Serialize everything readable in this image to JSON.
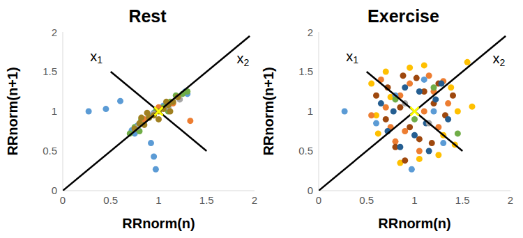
{
  "chart_data": [
    {
      "type": "scatter",
      "title": "Rest",
      "x_label": "RRnorm(n)",
      "y_label": "RRnorm(n+1)",
      "xlim": [
        0,
        2
      ],
      "ylim": [
        0,
        2
      ],
      "xticks": [
        0,
        0.5,
        1,
        1.5,
        2
      ],
      "yticks": [
        0,
        0.5,
        1,
        1.5,
        2
      ],
      "grid": false,
      "marker": "circle",
      "series": [
        {
          "color": "#5b9bd5",
          "x": [
            0.27,
            0.45,
            0.6,
            0.72,
            0.78,
            0.85,
            0.9,
            0.95,
            1.0,
            1.05,
            1.12,
            1.2,
            1.28,
            0.92,
            0.95,
            0.97,
            0.75,
            1.3
          ],
          "y": [
            1.0,
            1.03,
            1.13,
            0.76,
            0.82,
            0.88,
            0.95,
            0.98,
            1.02,
            1.07,
            1.1,
            1.18,
            1.25,
            0.6,
            0.43,
            0.27,
            0.72,
            1.22
          ]
        },
        {
          "color": "#70ad47",
          "x": [
            0.75,
            0.82,
            0.9,
            0.97,
            1.05,
            1.12,
            1.18,
            1.25,
            1.3,
            0.8,
            1.1,
            0.7
          ],
          "y": [
            0.8,
            0.9,
            0.92,
            1.0,
            1.05,
            1.12,
            1.2,
            1.22,
            1.25,
            0.75,
            1.0,
            0.72
          ]
        },
        {
          "color": "#ed7d31",
          "x": [
            1.33,
            0.85,
            1.0,
            1.15
          ],
          "y": [
            0.88,
            0.9,
            1.05,
            1.1
          ]
        },
        {
          "color": "#a5a5a5",
          "x": [
            0.78,
            0.95,
            1.1,
            1.22
          ],
          "y": [
            0.8,
            0.97,
            1.05,
            1.15
          ]
        },
        {
          "color": "#a08020",
          "x": [
            0.75,
            0.8,
            0.85,
            0.9,
            0.95,
            1.0,
            1.05,
            1.1,
            1.15,
            1.2,
            0.88,
            1.0,
            1.08,
            0.82,
            1.12
          ],
          "y": [
            0.78,
            0.85,
            0.83,
            0.92,
            0.95,
            1.0,
            1.03,
            1.08,
            1.12,
            1.18,
            0.98,
            0.9,
            1.12,
            0.92,
            1.0
          ]
        }
      ],
      "lines": [
        {
          "color": "#000000",
          "x": [
            0.5,
            1.5
          ],
          "y": [
            1.5,
            0.5
          ]
        },
        {
          "color": "#000000",
          "x": [
            0,
            1.95
          ],
          "y": [
            0,
            1.95
          ]
        }
      ],
      "annotations": [
        {
          "text": "x1",
          "x": 0.35,
          "y": 1.68
        },
        {
          "text": "x2",
          "x": 1.88,
          "y": 1.65
        }
      ],
      "center": {
        "x": 1,
        "y": 1,
        "color": "#ffff00",
        "marker": "x"
      }
    },
    {
      "type": "scatter",
      "title": "Exercise",
      "x_label": "RRnorm(n)",
      "y_label": "RRnorm(n+1)",
      "xlim": [
        0,
        2
      ],
      "ylim": [
        0,
        2
      ],
      "xticks": [
        0,
        0.5,
        1,
        1.5,
        2
      ],
      "yticks": [
        0,
        0.5,
        1,
        1.5,
        2
      ],
      "grid": false,
      "marker": "circle",
      "series": [
        {
          "color": "#ffc000",
          "x": [
            0.55,
            0.62,
            0.7,
            1.55,
            1.6,
            1.42,
            1.38,
            0.85,
            1.25,
            0.95,
            1.1,
            0.75,
            1.45,
            0.6,
            1.3,
            1.05
          ],
          "y": [
            1.35,
            0.72,
            1.5,
            1.62,
            1.06,
            0.58,
            1.3,
            0.35,
            0.45,
            1.55,
            1.58,
            1.18,
            1.0,
            0.95,
            0.7,
            0.4
          ]
        },
        {
          "color": "#ed7d31",
          "x": [
            0.55,
            0.65,
            0.75,
            0.85,
            0.95,
            1.05,
            1.15,
            1.25,
            1.35,
            0.8,
            1.1,
            1.3,
            0.9,
            1.2,
            0.7
          ],
          "y": [
            0.95,
            1.4,
            0.8,
            1.2,
            1.35,
            0.5,
            1.45,
            0.8,
            1.1,
            0.62,
            1.0,
            1.38,
            0.75,
            1.25,
            1.05
          ]
        },
        {
          "color": "#9e480e",
          "x": [
            0.6,
            0.72,
            0.8,
            0.88,
            0.95,
            1.02,
            1.1,
            1.18,
            1.25,
            1.32,
            0.85,
            1.05,
            1.2,
            0.7,
            1.4,
            0.9
          ],
          "y": [
            1.2,
            1.3,
            0.55,
            1.45,
            0.8,
            1.42,
            1.25,
            0.6,
            1.35,
            0.95,
            1.05,
            0.65,
            1.1,
            0.9,
            1.2,
            0.38
          ]
        },
        {
          "color": "#255e91",
          "x": [
            0.65,
            0.78,
            0.9,
            1.0,
            1.12,
            1.22,
            1.35,
            0.85,
            1.05,
            1.28,
            0.72,
            1.15
          ],
          "y": [
            1.1,
            1.0,
            1.3,
            0.7,
            0.85,
            1.15,
            0.9,
            0.55,
            1.25,
            1.35,
            0.75,
            0.5
          ]
        },
        {
          "color": "#5b9bd5",
          "x": [
            0.27,
            0.6,
            0.8,
            0.97,
            1.1,
            1.3,
            1.2
          ],
          "y": [
            1.0,
            0.85,
            1.2,
            0.27,
            1.4,
            0.6,
            1.0
          ]
        },
        {
          "color": "#70ad47",
          "x": [
            0.8,
            1.45,
            1.0,
            1.2
          ],
          "y": [
            1.15,
            0.72,
            0.9,
            1.3
          ]
        },
        {
          "color": "#a5a5a5",
          "x": [
            0.9,
            1.15
          ],
          "y": [
            1.1,
            0.85
          ]
        }
      ],
      "lines": [
        {
          "color": "#000000",
          "x": [
            0.5,
            1.5
          ],
          "y": [
            1.5,
            0.5
          ]
        },
        {
          "color": "#000000",
          "x": [
            0,
            1.95
          ],
          "y": [
            0,
            1.95
          ]
        }
      ],
      "annotations": [
        {
          "text": "x1",
          "x": 0.35,
          "y": 1.68
        },
        {
          "text": "x2",
          "x": 1.88,
          "y": 1.65
        }
      ],
      "center": {
        "x": 1,
        "y": 1,
        "color": "#ffff00",
        "marker": "x"
      }
    }
  ]
}
